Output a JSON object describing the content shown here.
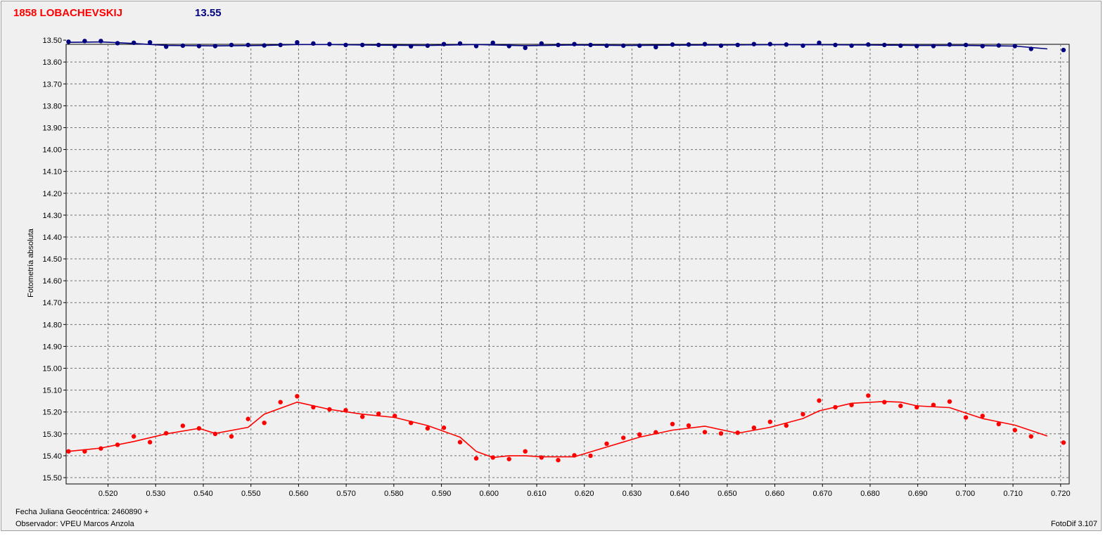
{
  "header": {
    "object_name": "1858 LOBACHEVSKIJ",
    "comparison_mag": "13.55"
  },
  "footer": {
    "julian_date_label": "Fecha Juliana Geocéntrica: 2460890 +",
    "observer_label": "Observador: VPEU Marcos Anzola",
    "software_label": "FotoDif 3.107"
  },
  "colors": {
    "object": "#ff0000",
    "comparison": "#000080",
    "grid": "#707070",
    "plot_bg": "#f0f0f0"
  },
  "chart_data": {
    "type": "line",
    "title": "1858 LOBACHEVSKIJ",
    "xlabel": "Fecha Juliana Geocéntrica: 2460890 +",
    "ylabel": "Fotometría absoluta",
    "xlim": [
      0.5112,
      0.7218
    ],
    "ylim": [
      13.519,
      15.529
    ],
    "y_inverted": true,
    "grid": true,
    "x_ticks": [
      "0.520",
      "0.530",
      "0.540",
      "0.550",
      "0.560",
      "0.570",
      "0.580",
      "0.590",
      "0.600",
      "0.610",
      "0.620",
      "0.630",
      "0.640",
      "0.650",
      "0.660",
      "0.670",
      "0.680",
      "0.690",
      "0.700",
      "0.710",
      "0.720"
    ],
    "y_ticks": [
      "13.50",
      "13.60",
      "13.70",
      "13.80",
      "13.90",
      "14.00",
      "14.10",
      "14.20",
      "14.30",
      "14.40",
      "14.50",
      "14.60",
      "14.70",
      "14.80",
      "14.90",
      "15.00",
      "15.10",
      "15.20",
      "15.30",
      "15.40",
      "15.50"
    ],
    "series": [
      {
        "name": "13.55",
        "color": "#000080",
        "points": [
          [
            0.5117,
            13.507
          ],
          [
            0.5151,
            13.504
          ],
          [
            0.5185,
            13.504
          ],
          [
            0.522,
            13.514
          ],
          [
            0.5254,
            13.512
          ],
          [
            0.5288,
            13.51
          ],
          [
            0.5322,
            13.53
          ],
          [
            0.5357,
            13.525
          ],
          [
            0.5391,
            13.527
          ],
          [
            0.5425,
            13.527
          ],
          [
            0.5459,
            13.522
          ],
          [
            0.5494,
            13.522
          ],
          [
            0.5528,
            13.524
          ],
          [
            0.5562,
            13.522
          ],
          [
            0.5597,
            13.51
          ],
          [
            0.5631,
            13.515
          ],
          [
            0.5665,
            13.518
          ],
          [
            0.5699,
            13.522
          ],
          [
            0.5734,
            13.522
          ],
          [
            0.5768,
            13.522
          ],
          [
            0.5802,
            13.527
          ],
          [
            0.5836,
            13.528
          ],
          [
            0.5871,
            13.525
          ],
          [
            0.5905,
            13.518
          ],
          [
            0.5939,
            13.515
          ],
          [
            0.5973,
            13.527
          ],
          [
            0.6008,
            13.512
          ],
          [
            0.6042,
            13.527
          ],
          [
            0.6076,
            13.535
          ],
          [
            0.611,
            13.515
          ],
          [
            0.6145,
            13.522
          ],
          [
            0.6179,
            13.518
          ],
          [
            0.6213,
            13.522
          ],
          [
            0.6247,
            13.525
          ],
          [
            0.6282,
            13.525
          ],
          [
            0.6316,
            13.525
          ],
          [
            0.635,
            13.532
          ],
          [
            0.6385,
            13.52
          ],
          [
            0.6419,
            13.52
          ],
          [
            0.6453,
            13.518
          ],
          [
            0.6487,
            13.525
          ],
          [
            0.6522,
            13.522
          ],
          [
            0.6556,
            13.518
          ],
          [
            0.659,
            13.518
          ],
          [
            0.6624,
            13.52
          ],
          [
            0.6659,
            13.525
          ],
          [
            0.6693,
            13.512
          ],
          [
            0.6727,
            13.522
          ],
          [
            0.6761,
            13.525
          ],
          [
            0.6796,
            13.52
          ],
          [
            0.683,
            13.522
          ],
          [
            0.6864,
            13.525
          ],
          [
            0.6898,
            13.527
          ],
          [
            0.6933,
            13.527
          ],
          [
            0.6967,
            13.52
          ],
          [
            0.7001,
            13.522
          ],
          [
            0.7036,
            13.527
          ],
          [
            0.707,
            13.524
          ],
          [
            0.7104,
            13.527
          ],
          [
            0.7138,
            13.54
          ],
          [
            0.7206,
            13.545
          ]
        ],
        "fit_line": [
          [
            0.5117,
            13.51
          ],
          [
            0.5185,
            13.508
          ],
          [
            0.5254,
            13.515
          ],
          [
            0.5322,
            13.524
          ],
          [
            0.5425,
            13.526
          ],
          [
            0.5528,
            13.524
          ],
          [
            0.5597,
            13.52
          ],
          [
            0.5665,
            13.52
          ],
          [
            0.5768,
            13.523
          ],
          [
            0.5871,
            13.524
          ],
          [
            0.5973,
            13.52
          ],
          [
            0.6076,
            13.525
          ],
          [
            0.6179,
            13.522
          ],
          [
            0.6282,
            13.524
          ],
          [
            0.6385,
            13.523
          ],
          [
            0.6487,
            13.522
          ],
          [
            0.659,
            13.521
          ],
          [
            0.6693,
            13.521
          ],
          [
            0.6796,
            13.522
          ],
          [
            0.6898,
            13.524
          ],
          [
            0.7001,
            13.524
          ],
          [
            0.7104,
            13.527
          ],
          [
            0.7172,
            13.54
          ]
        ]
      },
      {
        "name": "1858 LOBACHEVSKIJ",
        "color": "#ff0000",
        "points": [
          [
            0.5117,
            15.38
          ],
          [
            0.5151,
            15.38
          ],
          [
            0.5185,
            15.367
          ],
          [
            0.522,
            15.35
          ],
          [
            0.5254,
            15.312
          ],
          [
            0.5288,
            15.338
          ],
          [
            0.5322,
            15.297
          ],
          [
            0.5357,
            15.263
          ],
          [
            0.5391,
            15.275
          ],
          [
            0.5425,
            15.3
          ],
          [
            0.5459,
            15.312
          ],
          [
            0.5494,
            15.232
          ],
          [
            0.5528,
            15.25
          ],
          [
            0.5562,
            15.155
          ],
          [
            0.5597,
            15.128
          ],
          [
            0.5631,
            15.178
          ],
          [
            0.5665,
            15.188
          ],
          [
            0.5699,
            15.192
          ],
          [
            0.5734,
            15.222
          ],
          [
            0.5768,
            15.208
          ],
          [
            0.5802,
            15.218
          ],
          [
            0.5836,
            15.25
          ],
          [
            0.5871,
            15.275
          ],
          [
            0.5905,
            15.272
          ],
          [
            0.5939,
            15.338
          ],
          [
            0.5973,
            15.412
          ],
          [
            0.6008,
            15.408
          ],
          [
            0.6042,
            15.415
          ],
          [
            0.6076,
            15.38
          ],
          [
            0.611,
            15.408
          ],
          [
            0.6145,
            15.42
          ],
          [
            0.6179,
            15.398
          ],
          [
            0.6213,
            15.4
          ],
          [
            0.6247,
            15.345
          ],
          [
            0.6282,
            15.318
          ],
          [
            0.6316,
            15.303
          ],
          [
            0.635,
            15.293
          ],
          [
            0.6385,
            15.255
          ],
          [
            0.6419,
            15.262
          ],
          [
            0.6453,
            15.292
          ],
          [
            0.6487,
            15.298
          ],
          [
            0.6522,
            15.295
          ],
          [
            0.6556,
            15.272
          ],
          [
            0.659,
            15.245
          ],
          [
            0.6624,
            15.262
          ],
          [
            0.6659,
            15.21
          ],
          [
            0.6693,
            15.148
          ],
          [
            0.6727,
            15.178
          ],
          [
            0.6761,
            15.168
          ],
          [
            0.6796,
            15.125
          ],
          [
            0.683,
            15.155
          ],
          [
            0.6864,
            15.172
          ],
          [
            0.6898,
            15.178
          ],
          [
            0.6933,
            15.168
          ],
          [
            0.6967,
            15.152
          ],
          [
            0.7001,
            15.225
          ],
          [
            0.7036,
            15.218
          ],
          [
            0.707,
            15.255
          ],
          [
            0.7104,
            15.283
          ],
          [
            0.7138,
            15.312
          ],
          [
            0.7206,
            15.34
          ]
        ],
        "fit_line": [
          [
            0.5117,
            15.38
          ],
          [
            0.5185,
            15.365
          ],
          [
            0.5254,
            15.335
          ],
          [
            0.5322,
            15.3
          ],
          [
            0.5391,
            15.275
          ],
          [
            0.5425,
            15.298
          ],
          [
            0.5494,
            15.27
          ],
          [
            0.5528,
            15.21
          ],
          [
            0.5597,
            15.155
          ],
          [
            0.5665,
            15.188
          ],
          [
            0.5734,
            15.21
          ],
          [
            0.5802,
            15.225
          ],
          [
            0.5871,
            15.262
          ],
          [
            0.5939,
            15.315
          ],
          [
            0.5973,
            15.38
          ],
          [
            0.6008,
            15.408
          ],
          [
            0.6042,
            15.4
          ],
          [
            0.6076,
            15.4
          ],
          [
            0.611,
            15.405
          ],
          [
            0.6179,
            15.405
          ],
          [
            0.6247,
            15.36
          ],
          [
            0.6316,
            15.315
          ],
          [
            0.6385,
            15.283
          ],
          [
            0.6453,
            15.265
          ],
          [
            0.6522,
            15.297
          ],
          [
            0.659,
            15.27
          ],
          [
            0.6659,
            15.23
          ],
          [
            0.6693,
            15.195
          ],
          [
            0.6761,
            15.16
          ],
          [
            0.683,
            15.152
          ],
          [
            0.6864,
            15.155
          ],
          [
            0.6898,
            15.172
          ],
          [
            0.6967,
            15.18
          ],
          [
            0.7036,
            15.23
          ],
          [
            0.7104,
            15.26
          ],
          [
            0.7172,
            15.31
          ]
        ]
      }
    ]
  }
}
